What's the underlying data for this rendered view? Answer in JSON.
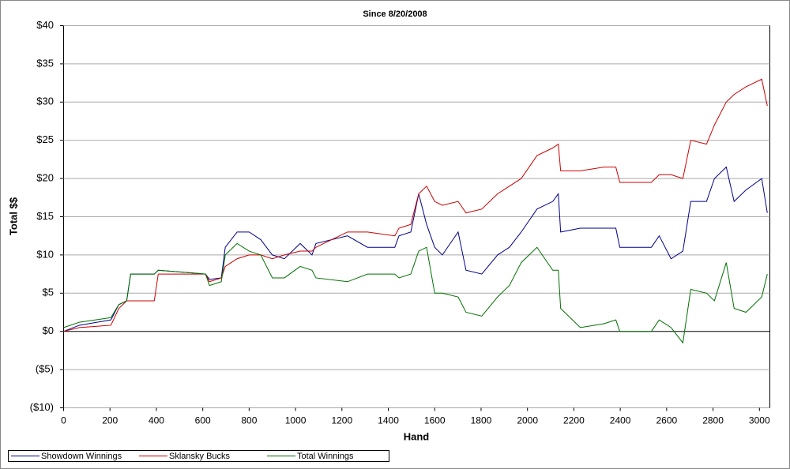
{
  "chart_data": {
    "type": "line",
    "title": "Since 8/20/2008",
    "x_label": "Hand",
    "y_label": "Total $$",
    "x": [
      0,
      68,
      204,
      238,
      272,
      289,
      391,
      408,
      612,
      629,
      680,
      697,
      748,
      800,
      850,
      900,
      952,
      1020,
      1071,
      1088,
      1224,
      1310,
      1428,
      1446,
      1497,
      1531,
      1565,
      1600,
      1633,
      1701,
      1735,
      1803,
      1871,
      1922,
      1973,
      2041,
      2109,
      2133,
      2143,
      2228,
      2330,
      2381,
      2398,
      2534,
      2568,
      2619,
      2670,
      2704,
      2772,
      2806,
      2857,
      2891,
      2942,
      3010,
      3034
    ],
    "series": [
      {
        "name": "Showdown Winnings",
        "color": "#00008b",
        "values": [
          0,
          0.8,
          1.5,
          3.5,
          4,
          7.5,
          7.5,
          8,
          7.5,
          6.8,
          7,
          11,
          13,
          13,
          12,
          10,
          9.5,
          11.5,
          10,
          11.5,
          12.5,
          11,
          11,
          12.5,
          13,
          18,
          14,
          11,
          10,
          13,
          8,
          7.5,
          10,
          11,
          13,
          16,
          17,
          18,
          13,
          13.5,
          13.5,
          13.5,
          11,
          11,
          12.5,
          9.5,
          10.5,
          17,
          17,
          20,
          21.5,
          17,
          18.5,
          20,
          15.5
        ]
      },
      {
        "name": "Sklansky Bucks",
        "color": "#cc0000",
        "values": [
          0,
          0.5,
          0.8,
          3,
          4,
          4,
          4,
          7.5,
          7.5,
          6.5,
          7,
          8.5,
          9.5,
          10,
          10,
          9.5,
          10,
          10.5,
          10.5,
          11,
          13,
          13,
          12.5,
          13.5,
          14,
          18,
          19,
          17,
          16.5,
          17,
          15.5,
          16,
          18,
          19,
          20,
          23,
          24,
          24.5,
          21,
          21,
          21.5,
          21.5,
          19.5,
          19.5,
          20.5,
          20.5,
          20,
          25,
          24.5,
          27,
          30,
          31,
          32,
          33,
          29.5
        ]
      },
      {
        "name": "Total Winnings",
        "color": "#007000",
        "values": [
          0.5,
          1.2,
          1.8,
          3.5,
          4,
          7.5,
          7.5,
          8,
          7.5,
          6,
          6.5,
          10,
          11.5,
          10.5,
          10,
          7,
          7,
          8.5,
          8,
          7,
          6.5,
          7.5,
          7.5,
          7,
          7.5,
          10.5,
          11,
          5,
          5,
          4.5,
          2.5,
          2,
          4.5,
          6,
          9,
          11,
          8,
          8,
          3,
          0.5,
          1,
          1.5,
          0,
          0,
          1.5,
          0.5,
          -1.5,
          5.5,
          5,
          4,
          9,
          3,
          2.5,
          4.5,
          7.5
        ]
      }
    ],
    "xlim": [
      0,
      3045
    ],
    "xticks": [
      0,
      200,
      400,
      600,
      800,
      1000,
      1200,
      1400,
      1600,
      1800,
      2000,
      2200,
      2400,
      2600,
      2800,
      3000
    ],
    "ylim": [
      -10,
      40
    ],
    "yticks": [
      {
        "value": -10,
        "label": "($10)"
      },
      {
        "value": -5,
        "label": "($5)"
      },
      {
        "value": 0,
        "label": "$0"
      },
      {
        "value": 5,
        "label": "$5"
      },
      {
        "value": 10,
        "label": "$10"
      },
      {
        "value": 15,
        "label": "$15"
      },
      {
        "value": 20,
        "label": "$20"
      },
      {
        "value": 25,
        "label": "$25"
      },
      {
        "value": 30,
        "label": "$30"
      },
      {
        "value": 35,
        "label": "$35"
      },
      {
        "value": 40,
        "label": "$40"
      }
    ],
    "grid": true,
    "legend": "bottom"
  }
}
